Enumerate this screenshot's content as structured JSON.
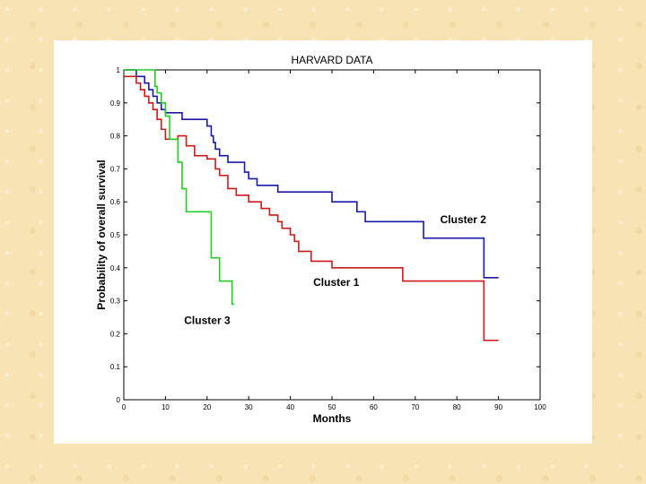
{
  "chart_data": {
    "type": "line",
    "step": true,
    "title": "HARVARD DATA",
    "xlabel": "Months",
    "ylabel": "Probability of overall survival",
    "xlim": [
      0,
      100
    ],
    "ylim": [
      0,
      1
    ],
    "xticks": [
      "0",
      "10",
      "20",
      "30",
      "40",
      "50",
      "60",
      "70",
      "80",
      "90",
      "100"
    ],
    "yticks": [
      "0",
      "0.1",
      "0.2",
      "0.3",
      "0.4",
      "0.5",
      "0.6",
      "0.7",
      "0.8",
      "0.9",
      "1"
    ],
    "series": [
      {
        "name": "Cluster 2",
        "label": "Cluster 2",
        "color": "#1a1aa8",
        "x": [
          0,
          3,
          5,
          6,
          7,
          8,
          9,
          10,
          14,
          20,
          21,
          21.5,
          22,
          23,
          25,
          29,
          30,
          32,
          37,
          50,
          56,
          58,
          72,
          86.5,
          90
        ],
        "y": [
          1,
          0.98,
          0.96,
          0.94,
          0.92,
          0.9,
          0.88,
          0.87,
          0.85,
          0.83,
          0.8,
          0.78,
          0.76,
          0.74,
          0.72,
          0.69,
          0.67,
          0.65,
          0.63,
          0.6,
          0.57,
          0.54,
          0.49,
          0.37,
          0.37
        ],
        "label_x": 76,
        "label_y": 0.535
      },
      {
        "name": "Cluster 1",
        "label": "Cluster 1",
        "color": "#cc1a1a",
        "x": [
          0,
          3,
          4,
          5,
          6,
          7,
          8,
          9,
          10,
          13,
          15,
          17,
          20,
          22,
          23,
          25,
          27,
          30,
          33,
          35,
          37,
          38,
          40,
          41,
          42,
          45,
          50,
          60,
          67,
          86,
          86.5,
          90
        ],
        "y": [
          0.98,
          0.96,
          0.94,
          0.92,
          0.9,
          0.88,
          0.85,
          0.82,
          0.79,
          0.8,
          0.77,
          0.74,
          0.73,
          0.7,
          0.68,
          0.64,
          0.62,
          0.6,
          0.58,
          0.56,
          0.54,
          0.52,
          0.5,
          0.48,
          0.45,
          0.42,
          0.4,
          0.4,
          0.36,
          0.36,
          0.18,
          0.18
        ],
        "label_x": 45.5,
        "label_y": 0.345
      },
      {
        "name": "Cluster 3",
        "label": "Cluster 3",
        "color": "#22cc22",
        "x": [
          0,
          7.5,
          8,
          9,
          10,
          11,
          13,
          14,
          15,
          21,
          21.5,
          23,
          26,
          26.5
        ],
        "y": [
          1,
          0.95,
          0.93,
          0.9,
          0.86,
          0.79,
          0.72,
          0.64,
          0.57,
          0.43,
          0.43,
          0.36,
          0.29,
          0.29
        ],
        "label_x": 14.5,
        "label_y": 0.23
      }
    ]
  }
}
